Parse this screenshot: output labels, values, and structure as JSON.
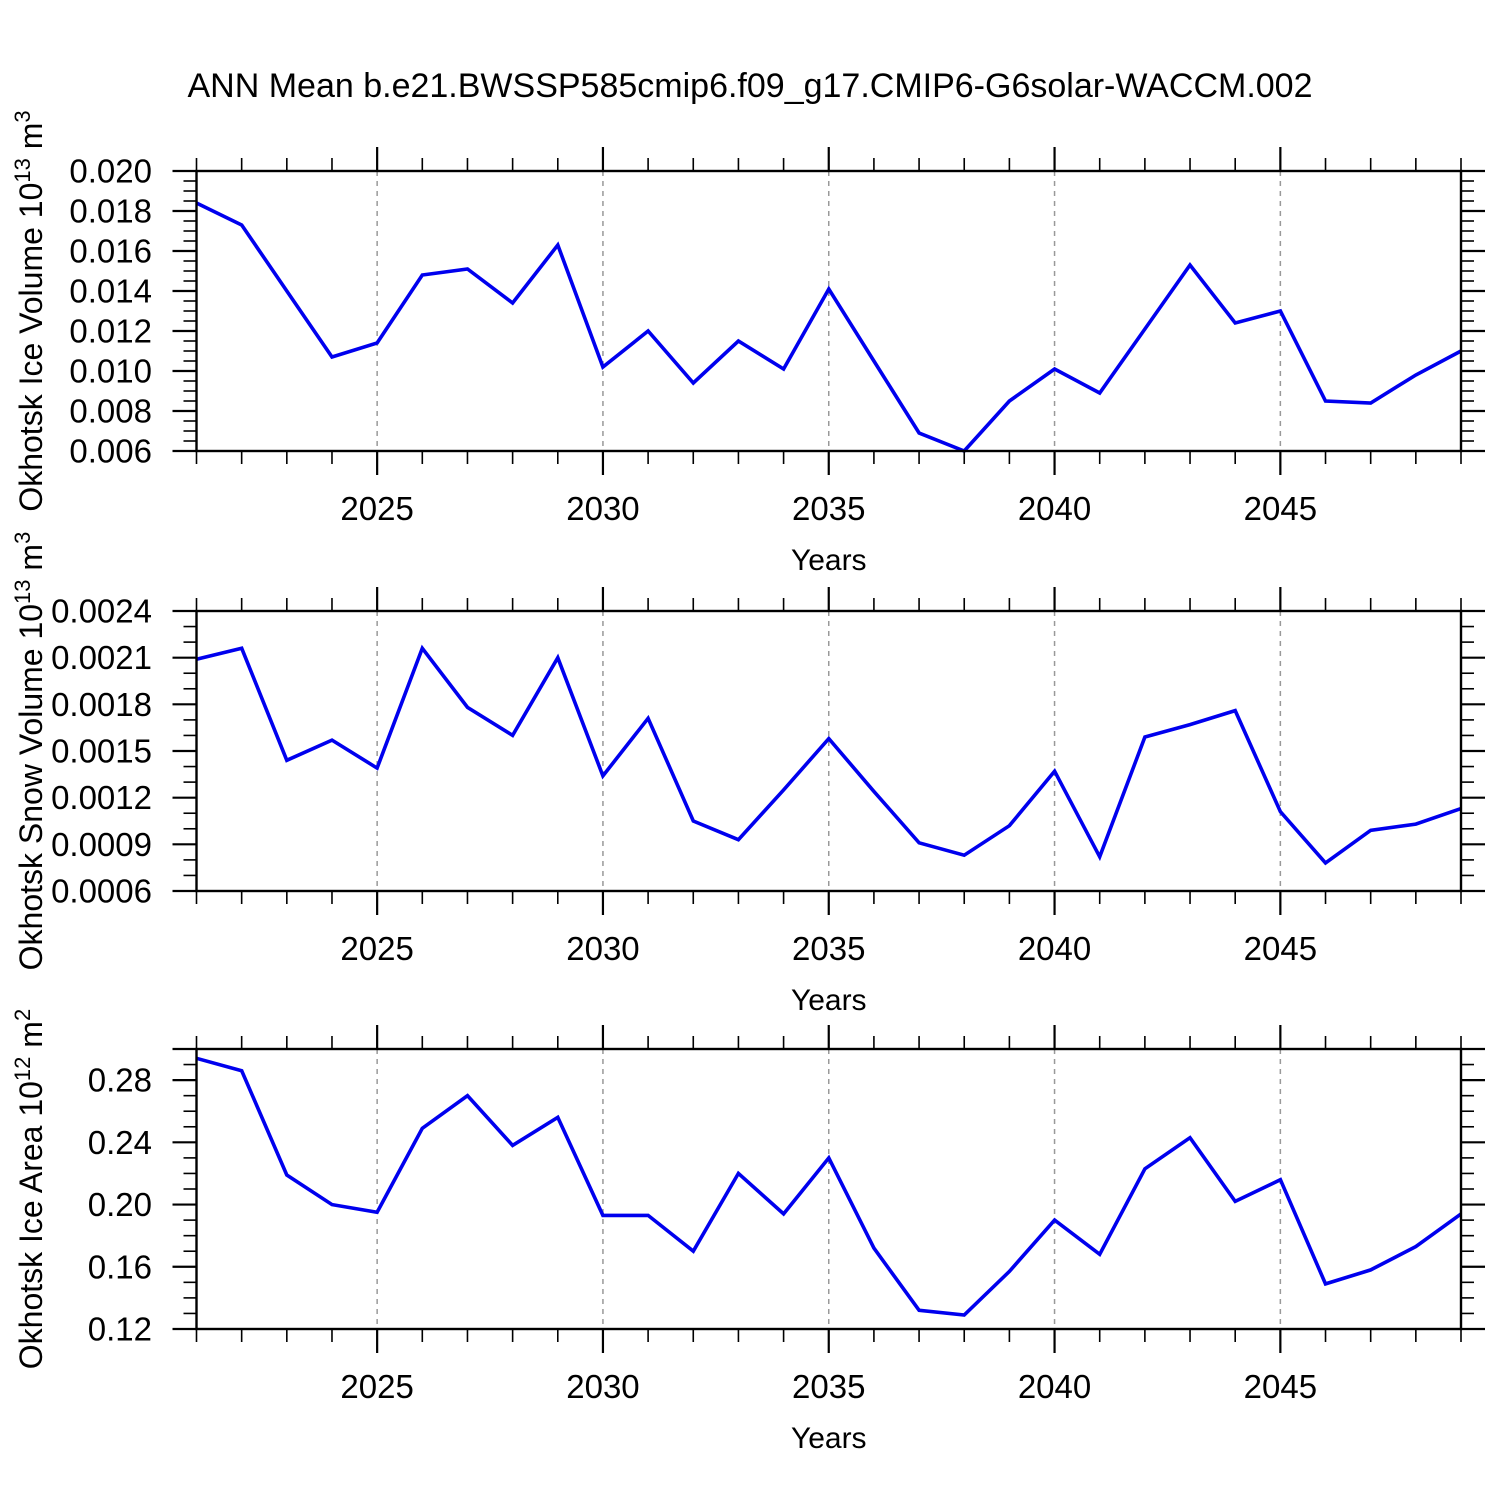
{
  "title": "ANN Mean b.e21.BWSSP585cmip6.f09_g17.CMIP6-G6solar-WACCM.002",
  "colors": {
    "line": "#0000EE",
    "grid": "#999999",
    "axis": "#000000",
    "text": "#000000"
  },
  "years": [
    2021,
    2022,
    2023,
    2024,
    2025,
    2026,
    2027,
    2028,
    2029,
    2030,
    2031,
    2032,
    2033,
    2034,
    2035,
    2036,
    2037,
    2038,
    2039,
    2040,
    2041,
    2042,
    2043,
    2044,
    2045,
    2046,
    2047,
    2048,
    2049
  ],
  "x_axis": {
    "label": "Years",
    "tick_values": [
      2025,
      2030,
      2035,
      2040,
      2045
    ],
    "tick_labels": [
      "2025",
      "2030",
      "2035",
      "2040",
      "2045"
    ],
    "range": [
      2021,
      2049
    ],
    "grid": "dashed-vertical-at-major-ticks"
  },
  "chart_data": [
    {
      "name": "ice-volume",
      "type": "line",
      "legend_position": "none",
      "ylabel_text": "Okhotsk Ice Volume 10^13 m^3",
      "ylabel_parts": [
        {
          "text": "Okhotsk Ice Volume 10",
          "sup": false
        },
        {
          "text": "13",
          "sup": true
        },
        {
          "text": " m",
          "sup": false
        },
        {
          "text": "3",
          "sup": true
        }
      ],
      "ylim": [
        0.006,
        0.02
      ],
      "ytick_labels": [
        "0.006",
        "0.008",
        "0.010",
        "0.012",
        "0.014",
        "0.016",
        "0.018",
        "0.020"
      ],
      "yminor_step": 0.0005,
      "extra_major_ticks": [],
      "values": [
        0.0184,
        0.0173,
        0.014,
        0.0107,
        0.0114,
        0.0148,
        0.0151,
        0.0134,
        0.0163,
        0.0102,
        0.012,
        0.0094,
        0.0115,
        0.0101,
        0.0141,
        0.0105,
        0.0069,
        0.006,
        0.0085,
        0.0101,
        0.0089,
        0.0121,
        0.0153,
        0.0124,
        0.013,
        0.0085,
        0.0084,
        0.0098,
        0.011
      ]
    },
    {
      "name": "snow-volume",
      "type": "line",
      "legend_position": "none",
      "ylabel_text": "Okhotsk Snow Volume 10^13 m^3",
      "ylabel_parts": [
        {
          "text": "Okhotsk Snow Volume 10",
          "sup": false
        },
        {
          "text": "13",
          "sup": true
        },
        {
          "text": " m",
          "sup": false
        },
        {
          "text": "3",
          "sup": true
        }
      ],
      "ylim": [
        0.0006,
        0.0024
      ],
      "ytick_labels": [
        "0.0006",
        "0.0009",
        "0.0012",
        "0.0015",
        "0.0018",
        "0.0021",
        "0.0024"
      ],
      "yminor_step": 0.0001,
      "extra_major_ticks": [],
      "values": [
        0.00209,
        0.00216,
        0.00144,
        0.00157,
        0.00139,
        0.00216,
        0.00178,
        0.0016,
        0.0021,
        0.00134,
        0.00171,
        0.00105,
        0.00093,
        0.00125,
        0.00158,
        0.00124,
        0.00091,
        0.00083,
        0.00102,
        0.00137,
        0.00082,
        0.00159,
        0.00167,
        0.00176,
        0.00111,
        0.00078,
        0.00099,
        0.00103,
        0.00113
      ]
    },
    {
      "name": "ice-area",
      "type": "line",
      "legend_position": "none",
      "ylabel_text": "Okhotsk Ice Area 10^12 m^2",
      "ylabel_parts": [
        {
          "text": "Okhotsk Ice Area 10",
          "sup": false
        },
        {
          "text": "12",
          "sup": true
        },
        {
          "text": " m",
          "sup": false
        },
        {
          "text": "2",
          "sup": true
        }
      ],
      "ylim": [
        0.12,
        0.3
      ],
      "ytick_labels": [
        "0.12",
        "0.16",
        "0.20",
        "0.24",
        "0.28"
      ],
      "yminor_step": 0.01,
      "extra_major_ticks": [
        0.3
      ],
      "values": [
        0.294,
        0.286,
        0.219,
        0.2,
        0.195,
        0.249,
        0.27,
        0.238,
        0.256,
        0.193,
        0.193,
        0.17,
        0.22,
        0.194,
        0.23,
        0.172,
        0.132,
        0.129,
        0.157,
        0.19,
        0.168,
        0.223,
        0.243,
        0.202,
        0.216,
        0.149,
        0.158,
        0.173,
        0.194
      ]
    }
  ]
}
